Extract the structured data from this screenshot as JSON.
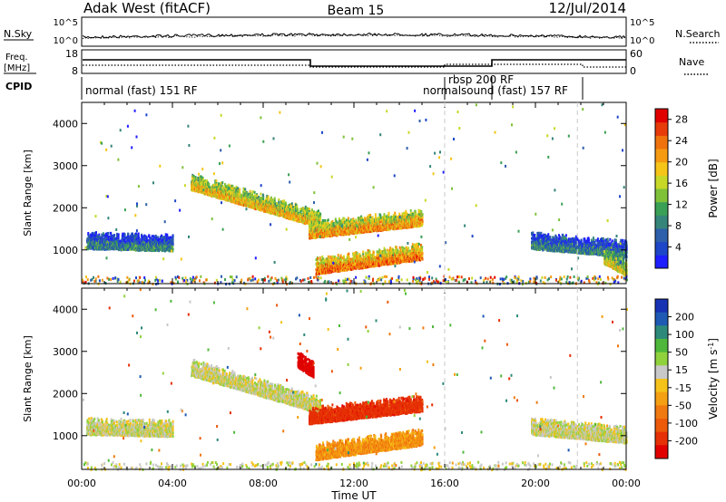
{
  "header": {
    "station": "Adak West (fitACF)",
    "beam": "Beam 15",
    "date": "12/Jul/2014"
  },
  "top_panel": {
    "left_label": "N.Sky",
    "right_label": "N.Search",
    "ticks_left": [
      "10^5",
      "10^0"
    ],
    "ticks_right": [
      "10^5",
      "10^0"
    ]
  },
  "freq_panel": {
    "left_label_1": "Freq.",
    "left_label_2": "[MHz]",
    "right_label": "Nave",
    "ticks_left": [
      "18",
      "8"
    ],
    "ticks_right": [
      "60",
      "0"
    ]
  },
  "cpid": {
    "label": "CPID",
    "modes": [
      {
        "text": "normal (fast) 151 RF"
      },
      {
        "text": "rbsp 200 RF"
      },
      {
        "text": "normalsound (fast) 157 RF"
      }
    ]
  },
  "colors": {
    "power": [
      "#1e1eff",
      "#1e46c8",
      "#2d5faa",
      "#35857a",
      "#3aa055",
      "#7fc23a",
      "#c8d826",
      "#f5c518",
      "#f59b12",
      "#f0720c",
      "#e83b0a",
      "#e00000"
    ],
    "velocity": [
      "#1832b4",
      "#1e5ab4",
      "#2d8a7a",
      "#4fb83a",
      "#90d23c",
      "#c8c8c8",
      "#f5c21a",
      "#f5a012",
      "#f07a10",
      "#ec5a0a",
      "#e63005",
      "#e00000"
    ]
  },
  "chart_data": [
    {
      "type": "heatmap",
      "quantity": "Power",
      "xlabel": "Time UT",
      "ylabel": "Slant Range [km]",
      "x_ticks": [
        "00:00",
        "04:00",
        "08:00",
        "12:00",
        "16:00",
        "20:00",
        "00:00"
      ],
      "y_ticks": [
        "1000",
        "2000",
        "3000",
        "4000"
      ],
      "ylim": [
        200,
        4500
      ],
      "colorbar_label": "Power [dB]",
      "colorbar_ticks": [
        "4",
        "8",
        "12",
        "16",
        "20",
        "24",
        "28"
      ],
      "colorbar_range": [
        0,
        30
      ],
      "features": [
        {
          "t_start": 4.8,
          "t_end": 10.5,
          "r_start": 2650,
          "r_end": 1750,
          "value": 20
        },
        {
          "t_start": 10.0,
          "t_end": 15.0,
          "r_start": 1500,
          "r_end": 1800,
          "value": 22
        },
        {
          "t_start": 10.3,
          "t_end": 15.0,
          "r_start": 650,
          "r_end": 1000,
          "value": 24
        },
        {
          "t_start": 0.2,
          "t_end": 4.0,
          "r_start": 1250,
          "r_end": 1200,
          "value": 8
        },
        {
          "t_start": 19.8,
          "t_end": 24.0,
          "r_start": 1250,
          "r_end": 1050,
          "value": 8
        },
        {
          "t_start": 23.0,
          "t_end": 24.0,
          "r_start": 900,
          "r_end": 600,
          "value": 18
        }
      ]
    },
    {
      "type": "heatmap",
      "quantity": "Velocity",
      "xlabel": "Time UT",
      "ylabel": "Slant Range [km]",
      "x_ticks": [
        "00:00",
        "04:00",
        "08:00",
        "12:00",
        "16:00",
        "20:00",
        "00:00"
      ],
      "y_ticks": [
        "1000",
        "2000",
        "3000",
        "4000"
      ],
      "ylim": [
        200,
        4500
      ],
      "colorbar_label": "Velocity [m s^-1]",
      "colorbar_ticks": [
        "200",
        "100",
        "50",
        "15",
        "-15",
        "-50",
        "-100",
        "-200"
      ],
      "features": [
        {
          "t_start": 4.8,
          "t_end": 10.5,
          "r_start": 2650,
          "r_end": 1750,
          "value": 0
        },
        {
          "t_start": 10.0,
          "t_end": 15.0,
          "r_start": 1500,
          "r_end": 1800,
          "value": -150
        },
        {
          "t_start": 10.3,
          "t_end": 15.0,
          "r_start": 650,
          "r_end": 1000,
          "value": -60
        },
        {
          "t_start": 0.2,
          "t_end": 4.0,
          "r_start": 1250,
          "r_end": 1200,
          "value": 0
        },
        {
          "t_start": 19.8,
          "t_end": 24.0,
          "r_start": 1250,
          "r_end": 1050,
          "value": 0
        },
        {
          "t_start": 9.5,
          "t_end": 10.2,
          "r_start": 2850,
          "r_end": 2600,
          "value": -200
        }
      ]
    }
  ]
}
